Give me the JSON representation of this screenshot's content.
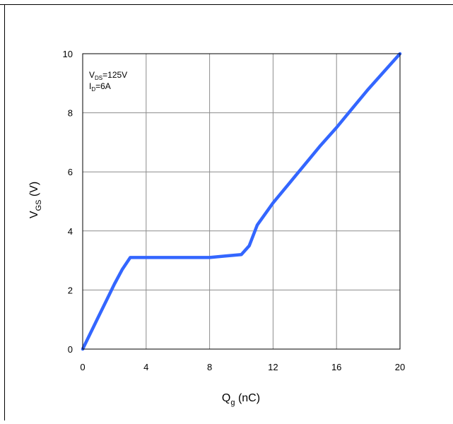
{
  "chart_data": {
    "type": "line",
    "title": "",
    "xlabel_main": "Q",
    "xlabel_sub": "g",
    "xlabel_unit": " (nC)",
    "ylabel_main": "V",
    "ylabel_sub": "GS",
    "ylabel_unit": " (V)",
    "xlim": [
      0,
      20
    ],
    "ylim": [
      0,
      10
    ],
    "x_ticks": [
      "0",
      "4",
      "8",
      "12",
      "16",
      "20"
    ],
    "y_ticks": [
      "0",
      "2",
      "4",
      "6",
      "8",
      "10"
    ],
    "x_tick_values": [
      0,
      4,
      8,
      12,
      16,
      20
    ],
    "y_tick_values": [
      0,
      2,
      4,
      6,
      8,
      10
    ],
    "grid": true,
    "annotation": {
      "line1_main": "V",
      "line1_sub": "DS",
      "line1_rest": "=125V",
      "line2_main": "I",
      "line2_sub": "D",
      "line2_rest": "=6A"
    },
    "series": [
      {
        "color": "#3366ff",
        "x": [
          0,
          0.5,
          1.0,
          1.5,
          2.0,
          2.5,
          3.0,
          3.5,
          4.0,
          5.0,
          6.0,
          7.0,
          8.0,
          9.0,
          10.0,
          10.5,
          11.0,
          12.0,
          13.0,
          14.0,
          15.0,
          16.0,
          17.0,
          18.0,
          19.0,
          20.0
        ],
        "y": [
          0,
          0.55,
          1.1,
          1.65,
          2.2,
          2.7,
          3.1,
          3.1,
          3.1,
          3.1,
          3.1,
          3.1,
          3.1,
          3.15,
          3.2,
          3.5,
          4.2,
          4.95,
          5.6,
          6.25,
          6.9,
          7.5,
          8.15,
          8.8,
          9.4,
          10.0
        ]
      }
    ]
  }
}
